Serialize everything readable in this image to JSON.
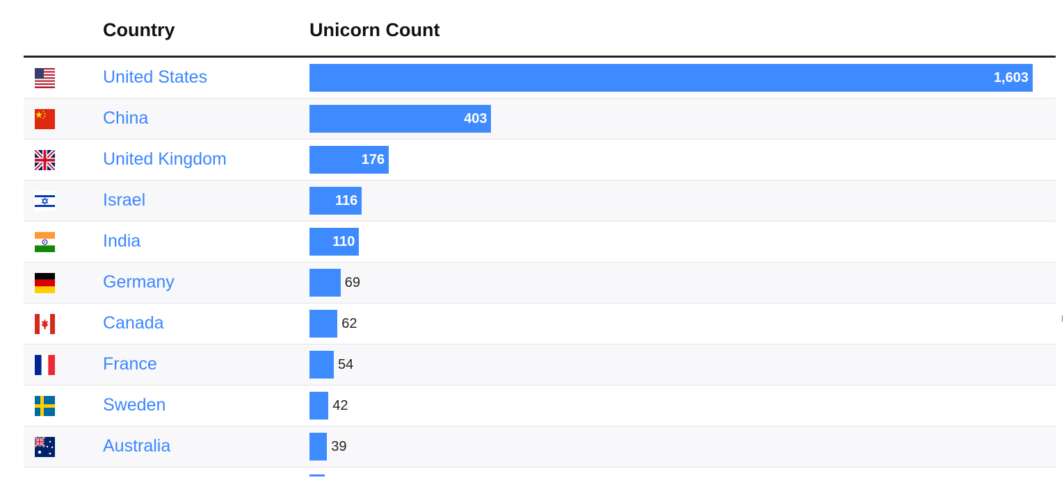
{
  "table": {
    "header_country": "Country",
    "header_count": "Unicorn Count"
  },
  "chart_data": {
    "type": "bar",
    "orientation": "horizontal",
    "xlabel": "",
    "ylabel": "",
    "categories": [
      "United States",
      "China",
      "United Kingdom",
      "Israel",
      "India",
      "Germany",
      "Canada",
      "France",
      "Sweden",
      "Australia"
    ],
    "values": [
      1603,
      403,
      176,
      116,
      110,
      69,
      62,
      54,
      42,
      39
    ],
    "value_labels": [
      "1,603",
      "403",
      "176",
      "116",
      "110",
      "69",
      "62",
      "54",
      "42",
      "39"
    ],
    "xlim": [
      0,
      1603
    ],
    "bar_color": "#3d8bff",
    "link_color": "#3a86ff"
  },
  "flags": [
    "us-flag-icon",
    "china-flag-icon",
    "uk-flag-icon",
    "israel-flag-icon",
    "india-flag-icon",
    "germany-flag-icon",
    "canada-flag-icon",
    "france-flag-icon",
    "sweden-flag-icon",
    "australia-flag-icon"
  ]
}
